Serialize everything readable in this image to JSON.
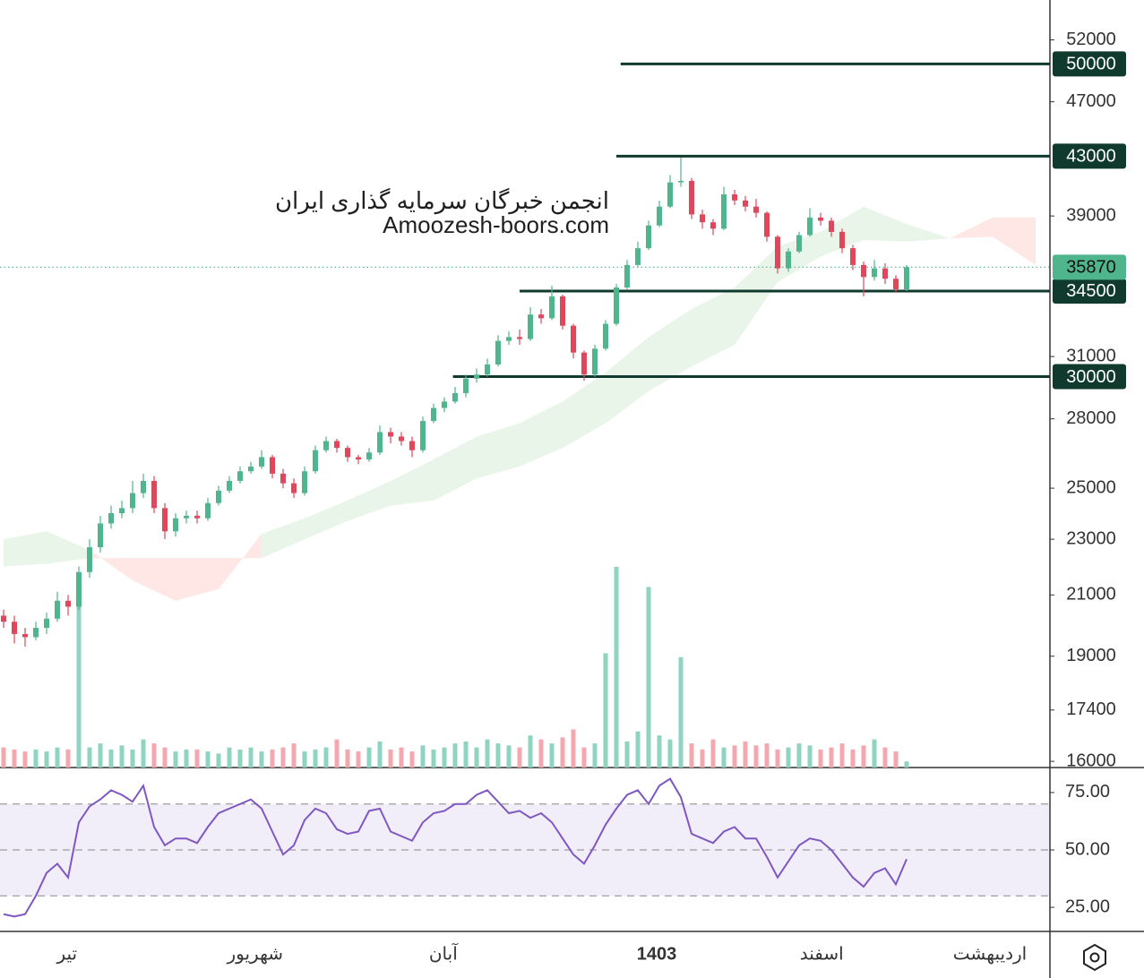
{
  "chart_data": {
    "type": "candlestick",
    "watermark": [
      "انجمن خبرگان سرمایه گذاری ایران",
      "Amoozesh-boors.com"
    ],
    "log_scale": true,
    "ylim": [
      15840,
      55500
    ],
    "yticks": [
      16000,
      17400,
      19000,
      21000,
      23000,
      25000,
      28000,
      31000,
      39000,
      47000,
      52000
    ],
    "up_color": "#4fb58d",
    "down_color": "#e0475b",
    "open": [
      20300,
      20100,
      19700,
      19600,
      19900,
      20200,
      20800,
      20600,
      21800,
      22700,
      23600,
      24000,
      24200,
      24800,
      25300,
      24200,
      23300,
      23800,
      23900,
      23800,
      24400,
      24900,
      25300,
      25700,
      25900,
      26300,
      25600,
      25200,
      24800,
      25700,
      26600,
      27000,
      26700,
      26300,
      26200,
      26500,
      27400,
      27200,
      27000,
      26600,
      27900,
      28500,
      28800,
      29200,
      29900,
      30100,
      30600,
      31800,
      32000,
      31900,
      33200,
      33000,
      34200,
      32600,
      31200,
      30100,
      31400,
      32700,
      34700,
      36000,
      37000,
      38400,
      39600,
      41200,
      41300,
      39100,
      38600,
      38200,
      40400,
      40000,
      39600,
      39200,
      37700,
      35800,
      36800,
      37800,
      38900,
      38700,
      38000,
      37000,
      36000,
      35300,
      35800,
      35200,
      34600
    ],
    "high": [
      20500,
      20300,
      19900,
      20100,
      20400,
      21100,
      21000,
      22000,
      23000,
      23900,
      24300,
      24500,
      25300,
      25600,
      25500,
      24400,
      24000,
      24100,
      24100,
      24600,
      25100,
      25500,
      25900,
      26100,
      26600,
      26400,
      25800,
      25400,
      25900,
      26800,
      27200,
      27100,
      26800,
      26400,
      26700,
      27700,
      27600,
      27400,
      27200,
      28100,
      28700,
      29000,
      29500,
      30100,
      30400,
      30900,
      32100,
      32300,
      32400,
      33600,
      33500,
      34800,
      34300,
      32700,
      31300,
      31600,
      32900,
      34900,
      36300,
      37400,
      38700,
      40000,
      41700,
      42900,
      41500,
      39400,
      38800,
      40900,
      40700,
      40300,
      40100,
      39300,
      37800,
      37000,
      38000,
      39500,
      39200,
      38900,
      38200,
      37200,
      36200,
      36300,
      36100,
      35400,
      36000
    ],
    "low": [
      19900,
      19400,
      19300,
      19500,
      19700,
      20100,
      20300,
      20500,
      21600,
      22500,
      23400,
      23800,
      24000,
      24600,
      24000,
      23000,
      23100,
      23600,
      23600,
      23700,
      24300,
      24800,
      25200,
      25600,
      25800,
      25400,
      25000,
      24600,
      24700,
      25600,
      26500,
      26500,
      26100,
      26000,
      26100,
      26400,
      26900,
      26800,
      26300,
      26500,
      27800,
      28300,
      28700,
      29000,
      29700,
      30000,
      30500,
      31600,
      31600,
      31800,
      32700,
      32900,
      32400,
      30900,
      29800,
      30000,
      31300,
      32600,
      34600,
      35900,
      36900,
      38300,
      39500,
      40900,
      38800,
      38200,
      37800,
      38100,
      39700,
      39300,
      38900,
      37400,
      35500,
      35600,
      36700,
      37700,
      38400,
      37700,
      36700,
      35700,
      34200,
      35100,
      34900,
      34400,
      34500
    ],
    "close": [
      20100,
      19700,
      19600,
      19900,
      20200,
      20800,
      20600,
      21800,
      22700,
      23600,
      24000,
      24200,
      24800,
      25300,
      24200,
      23300,
      23800,
      23900,
      23800,
      24400,
      24900,
      25300,
      25700,
      25900,
      26300,
      25600,
      25200,
      24800,
      25700,
      26600,
      27000,
      26700,
      26300,
      26200,
      26500,
      27400,
      27200,
      27000,
      26600,
      27900,
      28500,
      28800,
      29200,
      29900,
      30100,
      30600,
      31800,
      32000,
      31900,
      33200,
      33000,
      34200,
      32600,
      31200,
      30100,
      31400,
      32700,
      34700,
      36000,
      37000,
      38400,
      39600,
      41200,
      41300,
      39100,
      38600,
      38200,
      40400,
      40000,
      39600,
      39200,
      37700,
      35800,
      36800,
      37800,
      38900,
      38700,
      38000,
      37000,
      36000,
      35300,
      35800,
      35200,
      34600,
      35870
    ],
    "volume": [
      10,
      9,
      8,
      9,
      8,
      10,
      9,
      85,
      10,
      12,
      9,
      11,
      9,
      14,
      12,
      10,
      8,
      9,
      9,
      8,
      7,
      10,
      9,
      10,
      8,
      9,
      10,
      12,
      8,
      9,
      10,
      14,
      9,
      8,
      10,
      13,
      9,
      10,
      8,
      11,
      9,
      10,
      12,
      13,
      10,
      14,
      12,
      11,
      10,
      16,
      14,
      12,
      15,
      19,
      10,
      12,
      57,
      100,
      13,
      18,
      90,
      16,
      14,
      55,
      12,
      9,
      14,
      10,
      11,
      13,
      11,
      12,
      9,
      10,
      12,
      11,
      9,
      10,
      12,
      9,
      11,
      14,
      10,
      8,
      3
    ],
    "volume_up_color": "#8fd3c1",
    "volume_down_color": "#f4a7ae",
    "vlim": [
      0,
      100
    ],
    "cloud": {
      "x": [
        0,
        4,
        8,
        12,
        16,
        20,
        24,
        28,
        32,
        36,
        40,
        44,
        48,
        52,
        56,
        60,
        64,
        68,
        72,
        76,
        80,
        84,
        88,
        92,
        96
      ],
      "span_a": [
        23000,
        23300,
        22600,
        21500,
        20800,
        21200,
        23200,
        23800,
        24500,
        25300,
        26200,
        27200,
        27800,
        28800,
        30200,
        32000,
        33500,
        34700,
        37100,
        38000,
        39600,
        38500,
        37600,
        37700,
        36000
      ],
      "span_b": [
        22000,
        22100,
        22300,
        22300,
        22300,
        22300,
        22300,
        23000,
        23700,
        24300,
        24500,
        25400,
        25900,
        26700,
        27800,
        29300,
        30500,
        31600,
        35000,
        36500,
        37500,
        37400,
        37600,
        38900,
        38900
      ],
      "up_color": "rgba(76,175,80,0.13)",
      "down_color": "rgba(244,67,54,0.13)"
    },
    "levels": [
      {
        "value": 50000,
        "from": 57.4
      },
      {
        "value": 43000,
        "from": 57
      },
      {
        "value": 34500,
        "from": 48
      },
      {
        "value": 30000,
        "from": 41.8
      }
    ],
    "level_color": "#0f3a2d",
    "last_price": {
      "value": 35870,
      "color": "#4fb58d"
    },
    "x_labels": [
      {
        "index": 5.9,
        "label": "تیر"
      },
      {
        "index": 23.4,
        "label": "شهریور"
      },
      {
        "index": 40.9,
        "label": "آبان"
      },
      {
        "index": 60.75,
        "label": "1403",
        "bold": true
      },
      {
        "index": 76.1,
        "label": "اسفند"
      },
      {
        "index": 91.75,
        "label": "اردیبهشت"
      }
    ],
    "rsi": {
      "values": [
        22,
        21,
        22,
        30,
        40,
        44,
        38,
        62,
        69,
        72,
        76,
        74,
        71,
        78,
        60,
        52,
        55,
        55,
        53,
        60,
        66,
        68,
        70,
        72,
        68,
        58,
        48,
        52,
        63,
        68,
        66,
        59,
        57,
        58,
        67,
        68,
        58,
        56,
        54,
        62,
        66,
        67,
        70,
        70,
        74,
        76,
        71,
        66,
        67,
        64,
        66,
        62,
        55,
        48,
        44,
        52,
        61,
        68,
        74,
        76,
        70,
        78,
        81,
        73,
        57,
        55,
        53,
        58,
        60,
        55,
        55,
        47,
        38,
        45,
        52,
        55,
        54,
        50,
        44,
        38,
        34,
        40,
        42,
        35,
        46
      ],
      "color": "#7e57c2",
      "ylim": [
        14.5,
        85.9
      ],
      "yticks": [
        {
          "value": 25,
          "label": "25.00"
        },
        {
          "value": 50,
          "label": "50.00"
        },
        {
          "value": 75,
          "label": "75.00"
        }
      ],
      "band": [
        30,
        70
      ],
      "mid": 50,
      "band_color": "rgba(126,87,194,0.1)"
    }
  }
}
